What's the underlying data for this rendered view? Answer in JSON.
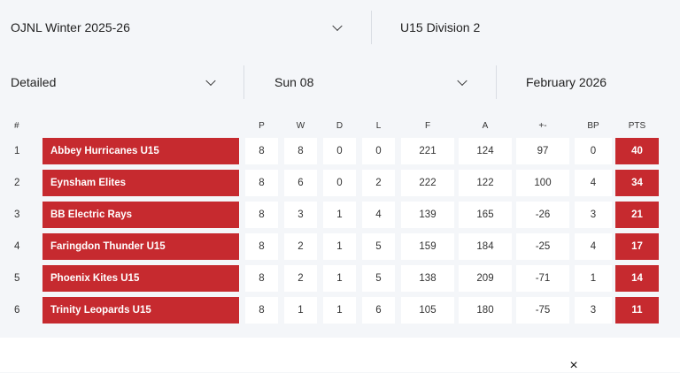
{
  "filters": {
    "season": "OJNL Winter 2025-26",
    "division": "U15 Division 2",
    "view": "Detailed",
    "day": "Sun 08",
    "month": "February 2026"
  },
  "table": {
    "headers": [
      "#",
      "P",
      "W",
      "D",
      "L",
      "F",
      "A",
      "+-",
      "BP",
      "PTS"
    ],
    "rows": [
      {
        "rank": "1",
        "team": "Abbey Hurricanes U15",
        "p": "8",
        "w": "8",
        "d": "0",
        "l": "0",
        "f": "221",
        "a": "124",
        "diff": "97",
        "bp": "0",
        "pts": "40"
      },
      {
        "rank": "2",
        "team": "Eynsham Elites",
        "p": "8",
        "w": "6",
        "d": "0",
        "l": "2",
        "f": "222",
        "a": "122",
        "diff": "100",
        "bp": "4",
        "pts": "34"
      },
      {
        "rank": "3",
        "team": "BB Electric Rays",
        "p": "8",
        "w": "3",
        "d": "1",
        "l": "4",
        "f": "139",
        "a": "165",
        "diff": "-26",
        "bp": "3",
        "pts": "21"
      },
      {
        "rank": "4",
        "team": "Faringdon Thunder U15",
        "p": "8",
        "w": "2",
        "d": "1",
        "l": "5",
        "f": "159",
        "a": "184",
        "diff": "-25",
        "bp": "4",
        "pts": "17"
      },
      {
        "rank": "5",
        "team": "Phoenix Kites U15",
        "p": "8",
        "w": "2",
        "d": "1",
        "l": "5",
        "f": "138",
        "a": "209",
        "diff": "-71",
        "bp": "1",
        "pts": "14"
      },
      {
        "rank": "6",
        "team": "Trinity Leopards U15",
        "p": "8",
        "w": "1",
        "d": "1",
        "l": "6",
        "f": "105",
        "a": "180",
        "diff": "-75",
        "bp": "3",
        "pts": "11"
      }
    ]
  },
  "close_symbol": "×",
  "colors": {
    "accent": "#c62a2f",
    "background": "#f4f6f9"
  }
}
